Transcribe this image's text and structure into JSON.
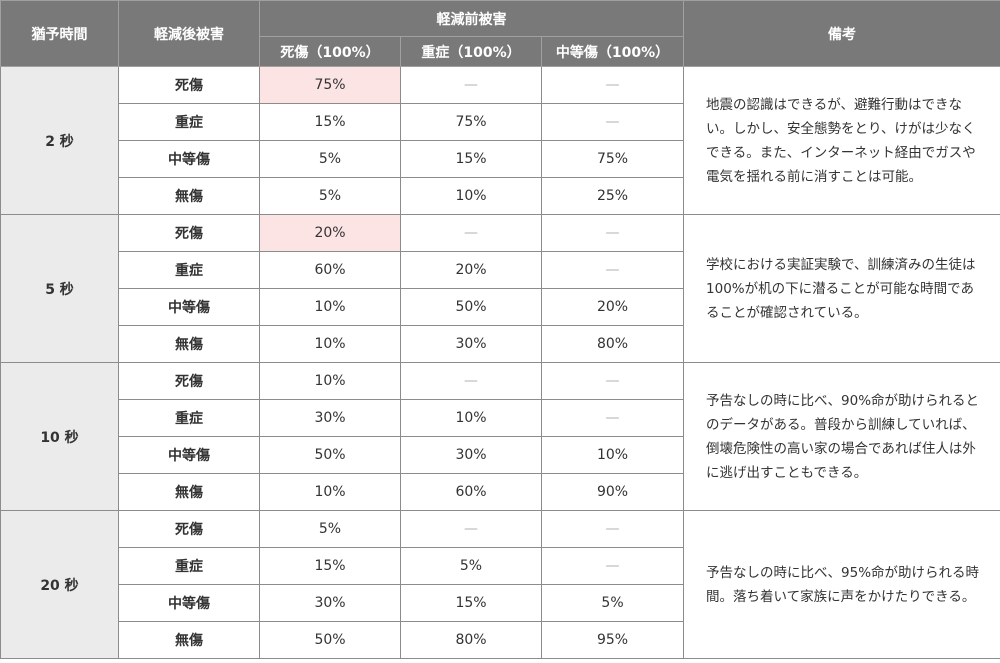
{
  "header": {
    "grace": "猶予時間",
    "after": "軽減後被害",
    "before_group": "軽減前被害",
    "death": "死傷（100%）",
    "severe": "重症（100%）",
    "moderate": "中等傷（100%）",
    "note": "備考"
  },
  "dash": "—",
  "groups": [
    {
      "grace": "2 秒",
      "note": "地震の認識はできるが、避難行動はできない。しかし、安全態勢をとり、けがは少なくできる。また、インターネット経由でガスや電気を揺れる前に消すことは可能。",
      "rows": [
        {
          "after": "死傷",
          "death": "75%",
          "severe": "—",
          "moderate": "—",
          "highlight": true
        },
        {
          "after": "重症",
          "death": "15%",
          "severe": "75%",
          "moderate": "—"
        },
        {
          "after": "中等傷",
          "death": "5%",
          "severe": "15%",
          "moderate": "75%"
        },
        {
          "after": "無傷",
          "death": "5%",
          "severe": "10%",
          "moderate": "25%"
        }
      ]
    },
    {
      "grace": "5 秒",
      "note": "学校における実証実験で、訓練済みの生徒は100%が机の下に潜ることが可能な時間であることが確認されている。",
      "rows": [
        {
          "after": "死傷",
          "death": "20%",
          "severe": "—",
          "moderate": "—",
          "highlight": true
        },
        {
          "after": "重症",
          "death": "60%",
          "severe": "20%",
          "moderate": "—"
        },
        {
          "after": "中等傷",
          "death": "10%",
          "severe": "50%",
          "moderate": "20%"
        },
        {
          "after": "無傷",
          "death": "10%",
          "severe": "30%",
          "moderate": "80%"
        }
      ]
    },
    {
      "grace": "10 秒",
      "note": "予告なしの時に比べ、90%命が助けられるとのデータがある。普段から訓練していれば、倒壊危険性の高い家の場合であれば住人は外に逃げ出すこともできる。",
      "rows": [
        {
          "after": "死傷",
          "death": "10%",
          "severe": "—",
          "moderate": "—"
        },
        {
          "after": "重症",
          "death": "30%",
          "severe": "10%",
          "moderate": "—"
        },
        {
          "after": "中等傷",
          "death": "50%",
          "severe": "30%",
          "moderate": "10%"
        },
        {
          "after": "無傷",
          "death": "10%",
          "severe": "60%",
          "moderate": "90%"
        }
      ]
    },
    {
      "grace": "20 秒",
      "note": "予告なしの時に比べ、95%命が助けられる時間。落ち着いて家族に声をかけたりできる。",
      "rows": [
        {
          "after": "死傷",
          "death": "5%",
          "severe": "—",
          "moderate": "—"
        },
        {
          "after": "重症",
          "death": "15%",
          "severe": "5%",
          "moderate": "—"
        },
        {
          "after": "中等傷",
          "death": "30%",
          "severe": "15%",
          "moderate": "5%"
        },
        {
          "after": "無傷",
          "death": "50%",
          "severe": "80%",
          "moderate": "95%"
        }
      ]
    }
  ]
}
